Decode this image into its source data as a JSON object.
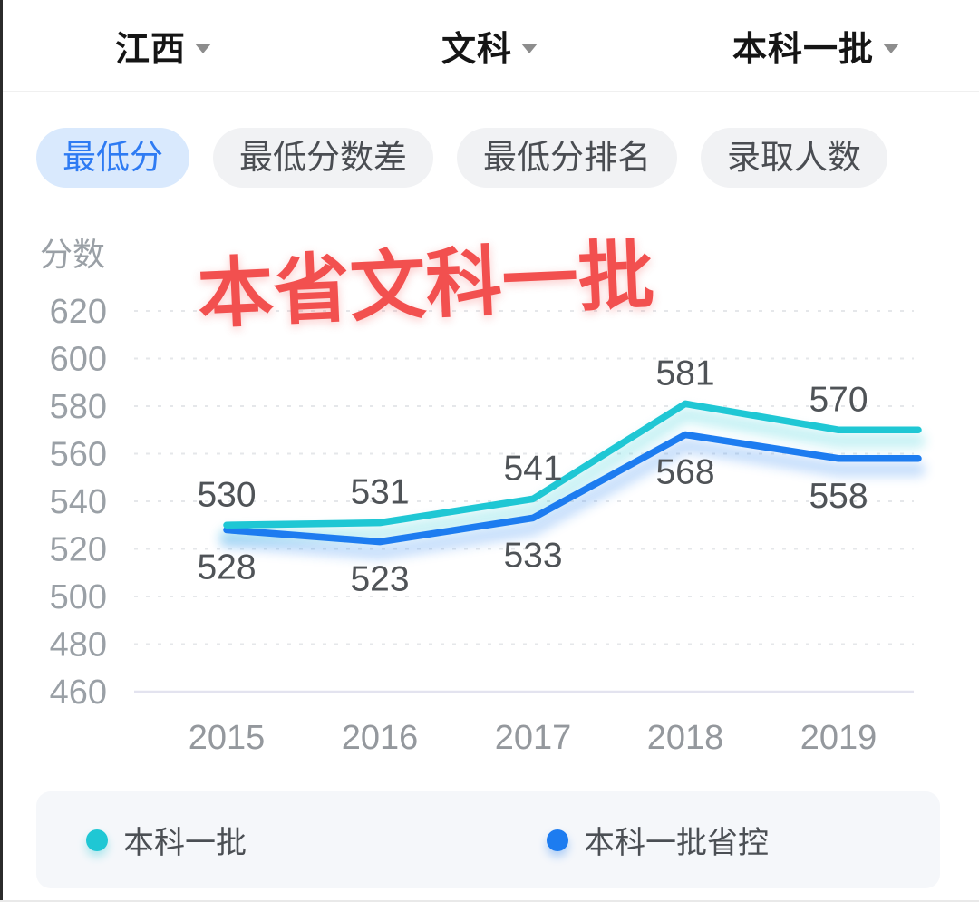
{
  "header": {
    "dropdowns": [
      {
        "label": "江西"
      },
      {
        "label": "文科"
      },
      {
        "label": "本科一批"
      }
    ]
  },
  "tabs": [
    {
      "label": "最低分",
      "selected": true
    },
    {
      "label": "最低分数差",
      "selected": false
    },
    {
      "label": "最低分排名",
      "selected": false
    },
    {
      "label": "录取人数",
      "selected": false
    }
  ],
  "annotation": {
    "text": "本省文科一批",
    "color": "#f2504f"
  },
  "chart_data": {
    "type": "line",
    "title": "",
    "ylabel": "分数",
    "xlabel": "",
    "categories": [
      "2015",
      "2016",
      "2017",
      "2018",
      "2019"
    ],
    "series": [
      {
        "name": "本科一批",
        "color": "#1fc7d4",
        "values": [
          530,
          531,
          541,
          581,
          570
        ],
        "label_position": "above"
      },
      {
        "name": "本科一批省控",
        "color": "#1d7cf0",
        "values": [
          528,
          523,
          533,
          568,
          558
        ],
        "label_position": "below"
      }
    ],
    "ylim": [
      460,
      620
    ],
    "ytick_step": 20,
    "grid": "horizontal-dotted",
    "legend_position": "bottom"
  },
  "colors": {
    "selected_tab_bg": "#d9e9fd",
    "selected_tab_text": "#2e7bf3",
    "tab_bg": "#f1f2f4",
    "grid_line": "#e5e7ea",
    "axis_text": "#9aa0a6"
  }
}
